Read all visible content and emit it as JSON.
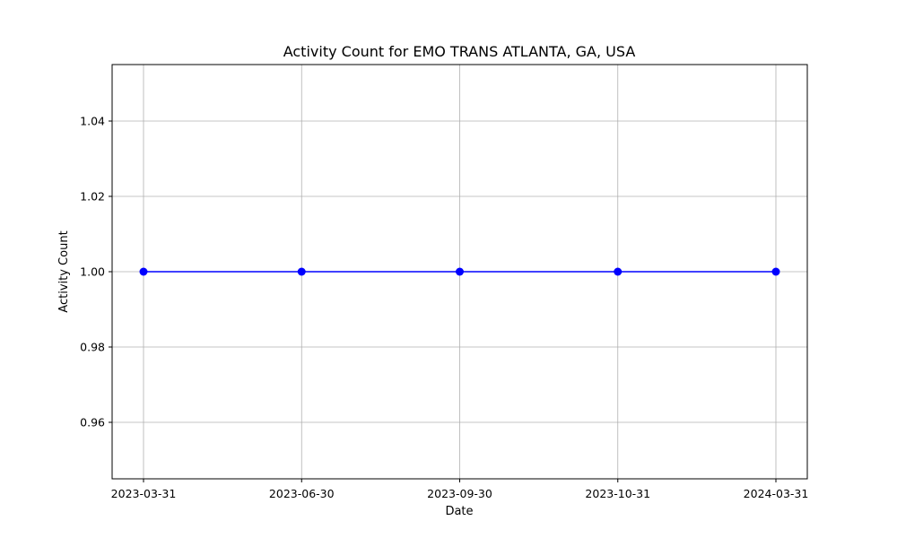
{
  "chart_data": {
    "type": "line",
    "title": "Activity Count for EMO TRANS ATLANTA, GA, USA",
    "xlabel": "Date",
    "ylabel": "Activity Count",
    "categories": [
      "2023-03-31",
      "2023-06-30",
      "2023-09-30",
      "2023-10-31",
      "2024-03-31"
    ],
    "series": [
      {
        "values": [
          1.0,
          1.0,
          1.0,
          1.0,
          1.0
        ],
        "color": "#0000ff",
        "marker": "circle"
      }
    ],
    "ylim": [
      0.945,
      1.055
    ],
    "yticks": [
      0.96,
      0.98,
      1.0,
      1.02,
      1.04
    ],
    "ytick_labels": [
      "0.96",
      "0.98",
      "1.00",
      "1.02",
      "1.04"
    ],
    "grid": true,
    "legend": "none"
  }
}
